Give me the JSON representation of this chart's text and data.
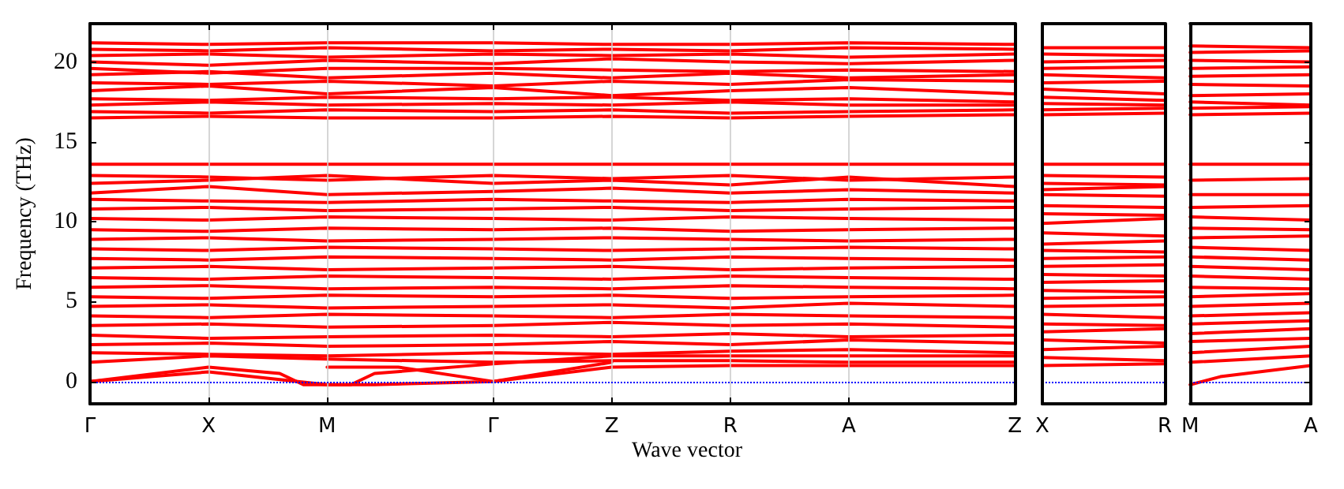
{
  "chart_data": [
    {
      "type": "line",
      "ylabel": "Frequency (THz)",
      "xlabel": "Wave vector",
      "color": "#ff0000",
      "grid": "x",
      "marker": "none",
      "categories": [
        "Γ",
        null,
        null,
        null,
        null,
        "X",
        null,
        null,
        null,
        null,
        "M",
        null,
        null,
        null,
        null,
        null,
        null,
        "Γ",
        null,
        null,
        null,
        null,
        "Z",
        null,
        null,
        null,
        null,
        "R",
        null,
        null,
        null,
        null,
        "A",
        null,
        null,
        null,
        null,
        null,
        null,
        "Z"
      ],
      "ylim": [
        -1.4,
        22.4
      ],
      "yticks": [
        0,
        5,
        10,
        15,
        20
      ],
      "ref_lines": [
        {
          "axis": "y",
          "value": 0,
          "color": "#0000ff",
          "line_style": "dotted"
        }
      ],
      "series": [
        {
          "values": [
            0,
            null,
            null,
            null,
            null,
            0.9,
            null,
            null,
            0.5,
            -0.2,
            -0.2,
            null,
            -0.2,
            null,
            null,
            null,
            null,
            0,
            null,
            null,
            null,
            null,
            0.9,
            null,
            null,
            null,
            null,
            1.0,
            null,
            null,
            null,
            null,
            1.0,
            null,
            null,
            null,
            null,
            null,
            null,
            1.0
          ]
        },
        {
          "values": [
            0,
            null,
            null,
            null,
            null,
            0.6,
            null,
            null,
            null,
            null,
            -0.2,
            -0.2,
            0.5,
            null,
            null,
            null,
            null,
            1.1,
            null,
            null,
            null,
            null,
            1.6,
            null,
            null,
            null,
            null,
            null,
            null,
            null,
            null,
            null,
            null,
            null,
            null,
            null,
            null,
            null,
            null,
            1.6
          ]
        },
        {
          "values": [
            null,
            null,
            null,
            null,
            null,
            null,
            null,
            null,
            null,
            null,
            0.9,
            null,
            null,
            0.9,
            null,
            null,
            null,
            0,
            null,
            null,
            null,
            null,
            1.2,
            null,
            null,
            null,
            null,
            null,
            null,
            null,
            null,
            null,
            null,
            null,
            null,
            null,
            null,
            null,
            null,
            null
          ]
        },
        {
          "values": [
            1.2,
            null,
            null,
            null,
            null,
            1.6,
            null,
            null,
            null,
            null,
            1.4,
            null,
            null,
            null,
            null,
            null,
            null,
            1.2,
            null,
            null,
            null,
            null,
            1.3,
            null,
            null,
            null,
            null,
            1.3,
            null,
            null,
            null,
            null,
            1.2,
            null,
            null,
            null,
            null,
            null,
            null,
            1.2
          ]
        },
        {
          "values": [
            1.8,
            null,
            null,
            null,
            null,
            1.7,
            null,
            null,
            null,
            null,
            1.6,
            null,
            null,
            null,
            null,
            null,
            null,
            1.8,
            null,
            null,
            null,
            null,
            1.7,
            null,
            null,
            null,
            null,
            1.9,
            null,
            null,
            null,
            null,
            2.0,
            null,
            null,
            null,
            null,
            null,
            null,
            1.8
          ]
        },
        {
          "values": [
            2.3,
            null,
            null,
            null,
            null,
            2.4,
            null,
            null,
            null,
            null,
            2.2,
            null,
            null,
            null,
            null,
            null,
            null,
            2.3,
            null,
            null,
            null,
            null,
            2.5,
            null,
            null,
            null,
            null,
            2.3,
            null,
            null,
            null,
            null,
            2.6,
            null,
            null,
            null,
            null,
            null,
            null,
            2.4
          ]
        },
        {
          "values": [
            2.9,
            null,
            null,
            null,
            null,
            2.7,
            null,
            null,
            null,
            null,
            2.8,
            null,
            null,
            null,
            null,
            null,
            null,
            2.9,
            null,
            null,
            null,
            null,
            2.8,
            null,
            null,
            null,
            null,
            3.0,
            null,
            null,
            null,
            null,
            2.8,
            null,
            null,
            null,
            null,
            null,
            null,
            2.9
          ]
        },
        {
          "values": [
            3.5,
            null,
            null,
            null,
            null,
            3.6,
            null,
            null,
            null,
            null,
            3.4,
            null,
            null,
            null,
            null,
            null,
            null,
            3.5,
            null,
            null,
            null,
            null,
            3.7,
            null,
            null,
            null,
            null,
            3.5,
            null,
            null,
            null,
            null,
            3.6,
            null,
            null,
            null,
            null,
            null,
            null,
            3.4
          ]
        },
        {
          "values": [
            4.1,
            null,
            null,
            null,
            null,
            4.0,
            null,
            null,
            null,
            null,
            4.2,
            null,
            null,
            null,
            null,
            null,
            null,
            4.1,
            null,
            null,
            null,
            null,
            4.0,
            null,
            null,
            null,
            null,
            4.2,
            null,
            null,
            null,
            null,
            4.1,
            null,
            null,
            null,
            null,
            null,
            null,
            4.0
          ]
        },
        {
          "values": [
            4.7,
            null,
            null,
            null,
            null,
            4.8,
            null,
            null,
            null,
            null,
            4.6,
            null,
            null,
            null,
            null,
            null,
            null,
            4.7,
            null,
            null,
            null,
            null,
            4.8,
            null,
            null,
            null,
            null,
            4.6,
            null,
            null,
            null,
            null,
            4.9,
            null,
            null,
            null,
            null,
            null,
            null,
            4.7
          ]
        },
        {
          "values": [
            5.3,
            null,
            null,
            null,
            null,
            5.2,
            null,
            null,
            null,
            null,
            5.4,
            null,
            null,
            null,
            null,
            null,
            null,
            5.3,
            null,
            null,
            null,
            null,
            5.4,
            null,
            null,
            null,
            null,
            5.2,
            null,
            null,
            null,
            null,
            5.3,
            null,
            null,
            null,
            null,
            null,
            null,
            5.4
          ]
        },
        {
          "values": [
            5.9,
            null,
            null,
            null,
            null,
            6.0,
            null,
            null,
            null,
            null,
            5.8,
            null,
            null,
            null,
            null,
            null,
            null,
            5.9,
            null,
            null,
            null,
            null,
            5.8,
            null,
            null,
            null,
            null,
            6.0,
            null,
            null,
            null,
            null,
            5.9,
            null,
            null,
            null,
            null,
            null,
            null,
            5.8
          ]
        },
        {
          "values": [
            6.5,
            null,
            null,
            null,
            null,
            6.4,
            null,
            null,
            null,
            null,
            6.6,
            null,
            null,
            null,
            null,
            null,
            null,
            6.5,
            null,
            null,
            null,
            null,
            6.4,
            null,
            null,
            null,
            null,
            6.6,
            null,
            null,
            null,
            null,
            6.5,
            null,
            null,
            null,
            null,
            null,
            null,
            6.4
          ]
        },
        {
          "values": [
            7.1,
            null,
            null,
            null,
            null,
            7.2,
            null,
            null,
            null,
            null,
            7.0,
            null,
            null,
            null,
            null,
            null,
            null,
            7.1,
            null,
            null,
            null,
            null,
            7.2,
            null,
            null,
            null,
            null,
            7.0,
            null,
            null,
            null,
            null,
            7.1,
            null,
            null,
            null,
            null,
            null,
            null,
            7.2
          ]
        },
        {
          "values": [
            7.7,
            null,
            null,
            null,
            null,
            7.6,
            null,
            null,
            null,
            null,
            7.8,
            null,
            null,
            null,
            null,
            null,
            null,
            7.7,
            null,
            null,
            null,
            null,
            7.6,
            null,
            null,
            null,
            null,
            7.8,
            null,
            null,
            null,
            null,
            7.7,
            null,
            null,
            null,
            null,
            null,
            null,
            7.6
          ]
        },
        {
          "values": [
            8.3,
            null,
            null,
            null,
            null,
            8.2,
            null,
            null,
            null,
            null,
            8.4,
            null,
            null,
            null,
            null,
            null,
            null,
            8.3,
            null,
            null,
            null,
            null,
            8.2,
            null,
            null,
            null,
            null,
            8.3,
            null,
            null,
            null,
            null,
            8.4,
            null,
            null,
            null,
            null,
            null,
            null,
            8.3
          ]
        },
        {
          "values": [
            8.9,
            null,
            null,
            null,
            null,
            9.0,
            null,
            null,
            null,
            null,
            8.8,
            null,
            null,
            null,
            null,
            null,
            null,
            8.9,
            null,
            null,
            null,
            null,
            9.0,
            null,
            null,
            null,
            null,
            8.9,
            null,
            null,
            null,
            null,
            8.8,
            null,
            null,
            null,
            null,
            null,
            null,
            8.9
          ]
        },
        {
          "values": [
            9.5,
            null,
            null,
            null,
            null,
            9.4,
            null,
            null,
            null,
            null,
            9.6,
            null,
            null,
            null,
            null,
            null,
            null,
            9.5,
            null,
            null,
            null,
            null,
            9.6,
            null,
            null,
            null,
            null,
            9.4,
            null,
            null,
            null,
            null,
            9.5,
            null,
            null,
            null,
            null,
            null,
            null,
            9.6
          ]
        },
        {
          "values": [
            10.2,
            null,
            null,
            null,
            null,
            10.1,
            null,
            null,
            null,
            null,
            10.3,
            null,
            null,
            null,
            null,
            null,
            null,
            10.2,
            null,
            null,
            null,
            null,
            10.1,
            null,
            null,
            null,
            null,
            10.3,
            null,
            null,
            null,
            null,
            10.2,
            null,
            null,
            null,
            null,
            null,
            null,
            10.1
          ]
        },
        {
          "values": [
            10.8,
            null,
            null,
            null,
            null,
            10.9,
            null,
            null,
            null,
            null,
            10.7,
            null,
            null,
            null,
            null,
            null,
            null,
            10.8,
            null,
            null,
            null,
            null,
            10.9,
            null,
            null,
            null,
            null,
            10.7,
            null,
            null,
            null,
            null,
            10.8,
            null,
            null,
            null,
            null,
            null,
            null,
            10.9
          ]
        },
        {
          "values": [
            11.4,
            null,
            null,
            null,
            null,
            11.3,
            null,
            null,
            null,
            null,
            11.2,
            null,
            null,
            null,
            null,
            null,
            null,
            11.4,
            null,
            null,
            null,
            null,
            11.3,
            null,
            null,
            null,
            null,
            11.2,
            null,
            null,
            null,
            null,
            11.4,
            null,
            null,
            null,
            null,
            null,
            null,
            11.3
          ]
        },
        {
          "values": [
            11.8,
            null,
            null,
            null,
            null,
            12.2,
            null,
            null,
            null,
            null,
            11.7,
            null,
            null,
            null,
            null,
            null,
            null,
            11.9,
            null,
            null,
            null,
            null,
            12.1,
            null,
            null,
            null,
            null,
            11.8,
            null,
            null,
            null,
            null,
            12.0,
            null,
            null,
            null,
            null,
            null,
            null,
            11.8
          ]
        },
        {
          "values": [
            12.4,
            null,
            null,
            null,
            null,
            12.6,
            null,
            null,
            null,
            null,
            12.9,
            null,
            null,
            null,
            null,
            null,
            null,
            12.4,
            null,
            null,
            null,
            null,
            12.6,
            null,
            null,
            null,
            null,
            12.3,
            null,
            null,
            null,
            null,
            12.8,
            null,
            null,
            null,
            null,
            null,
            null,
            12.2
          ]
        },
        {
          "values": [
            12.9,
            null,
            null,
            null,
            null,
            12.8,
            null,
            null,
            null,
            null,
            12.6,
            null,
            null,
            null,
            null,
            null,
            null,
            12.9,
            null,
            null,
            null,
            null,
            12.7,
            null,
            null,
            null,
            null,
            12.9,
            null,
            null,
            null,
            null,
            12.6,
            null,
            null,
            null,
            null,
            null,
            null,
            12.8
          ]
        },
        {
          "values": [
            13.6,
            null,
            null,
            null,
            null,
            13.6,
            null,
            null,
            null,
            null,
            13.6,
            null,
            null,
            null,
            null,
            null,
            null,
            13.6,
            null,
            null,
            null,
            null,
            13.6,
            null,
            null,
            null,
            null,
            13.6,
            null,
            null,
            null,
            null,
            13.6,
            null,
            null,
            null,
            null,
            null,
            null,
            13.6
          ]
        },
        {
          "values": [
            16.5,
            null,
            null,
            null,
            null,
            16.6,
            null,
            null,
            null,
            null,
            16.5,
            null,
            null,
            null,
            null,
            null,
            null,
            16.5,
            null,
            null,
            null,
            null,
            16.6,
            null,
            null,
            null,
            null,
            16.5,
            null,
            null,
            null,
            null,
            16.6,
            null,
            null,
            null,
            null,
            null,
            null,
            16.7
          ]
        },
        {
          "values": [
            16.9,
            null,
            null,
            null,
            null,
            16.8,
            null,
            null,
            null,
            null,
            17.0,
            null,
            null,
            null,
            null,
            null,
            null,
            16.9,
            null,
            null,
            null,
            null,
            17.0,
            null,
            null,
            null,
            null,
            16.8,
            null,
            null,
            null,
            null,
            16.9,
            null,
            null,
            null,
            null,
            null,
            null,
            17.0
          ]
        },
        {
          "values": [
            17.3,
            null,
            null,
            null,
            null,
            17.5,
            null,
            null,
            null,
            null,
            17.3,
            null,
            null,
            null,
            null,
            null,
            null,
            17.4,
            null,
            null,
            null,
            null,
            17.3,
            null,
            null,
            null,
            null,
            17.5,
            null,
            null,
            null,
            null,
            17.3,
            null,
            null,
            null,
            null,
            null,
            null,
            17.3
          ]
        },
        {
          "values": [
            17.7,
            null,
            null,
            null,
            null,
            17.6,
            null,
            null,
            null,
            null,
            17.8,
            null,
            null,
            null,
            null,
            null,
            null,
            17.7,
            null,
            null,
            null,
            null,
            17.8,
            null,
            null,
            null,
            null,
            17.6,
            null,
            null,
            null,
            null,
            17.7,
            null,
            null,
            null,
            null,
            null,
            null,
            17.5
          ]
        },
        {
          "values": [
            18.2,
            null,
            null,
            null,
            null,
            18.5,
            null,
            null,
            null,
            null,
            18.0,
            null,
            null,
            null,
            null,
            null,
            null,
            18.4,
            null,
            null,
            null,
            null,
            17.9,
            null,
            null,
            null,
            null,
            18.2,
            null,
            null,
            null,
            null,
            18.4,
            null,
            null,
            null,
            null,
            null,
            null,
            18.0
          ]
        },
        {
          "values": [
            18.7,
            null,
            null,
            null,
            null,
            18.6,
            null,
            null,
            null,
            null,
            18.8,
            null,
            null,
            null,
            null,
            null,
            null,
            18.5,
            null,
            null,
            null,
            null,
            18.8,
            null,
            null,
            null,
            null,
            18.6,
            null,
            null,
            null,
            null,
            18.9,
            null,
            null,
            null,
            null,
            null,
            null,
            18.8
          ]
        },
        {
          "values": [
            19.2,
            null,
            null,
            null,
            null,
            19.4,
            null,
            null,
            null,
            null,
            19.0,
            null,
            null,
            null,
            null,
            null,
            null,
            19.3,
            null,
            null,
            null,
            null,
            19.0,
            null,
            null,
            null,
            null,
            19.3,
            null,
            null,
            null,
            null,
            19.0,
            null,
            null,
            null,
            null,
            null,
            null,
            19.2
          ]
        },
        {
          "values": [
            19.6,
            null,
            null,
            null,
            null,
            19.3,
            null,
            null,
            null,
            null,
            19.6,
            null,
            null,
            null,
            null,
            null,
            null,
            19.6,
            null,
            null,
            null,
            null,
            19.5,
            null,
            null,
            null,
            null,
            19.4,
            null,
            null,
            null,
            null,
            19.5,
            null,
            null,
            null,
            null,
            null,
            null,
            19.4
          ]
        },
        {
          "values": [
            20.0,
            null,
            null,
            null,
            null,
            19.8,
            null,
            null,
            null,
            null,
            20.1,
            null,
            null,
            null,
            null,
            null,
            null,
            19.9,
            null,
            null,
            null,
            null,
            20.2,
            null,
            null,
            null,
            null,
            20.0,
            null,
            null,
            null,
            null,
            19.9,
            null,
            null,
            null,
            null,
            null,
            null,
            20.1
          ]
        },
        {
          "values": [
            20.4,
            null,
            null,
            null,
            null,
            20.5,
            null,
            null,
            null,
            null,
            20.3,
            null,
            null,
            null,
            null,
            null,
            null,
            20.5,
            null,
            null,
            null,
            null,
            20.4,
            null,
            null,
            null,
            null,
            20.5,
            null,
            null,
            null,
            null,
            20.3,
            null,
            null,
            null,
            null,
            null,
            null,
            20.5
          ]
        },
        {
          "values": [
            20.8,
            null,
            null,
            null,
            null,
            20.7,
            null,
            null,
            null,
            null,
            20.9,
            null,
            null,
            null,
            null,
            null,
            null,
            20.7,
            null,
            null,
            null,
            null,
            20.8,
            null,
            null,
            null,
            null,
            20.7,
            null,
            null,
            null,
            null,
            20.9,
            null,
            null,
            null,
            null,
            null,
            null,
            20.8
          ]
        },
        {
          "values": [
            21.2,
            null,
            null,
            null,
            null,
            21.1,
            null,
            null,
            null,
            null,
            21.2,
            null,
            null,
            null,
            null,
            null,
            null,
            21.2,
            null,
            null,
            null,
            null,
            21.1,
            null,
            null,
            null,
            null,
            21.1,
            null,
            null,
            null,
            null,
            21.2,
            null,
            null,
            null,
            null,
            null,
            null,
            21.1
          ]
        }
      ]
    },
    {
      "type": "line",
      "color": "#ff0000",
      "marker": "none",
      "tick_labels": "x",
      "categories": [
        "X",
        "R"
      ],
      "ylim": [
        -1.4,
        22.4
      ],
      "ref_lines": [
        {
          "axis": "y",
          "value": 0,
          "color": "#0000ff",
          "line_style": "dotted"
        }
      ],
      "series": [
        {
          "values": [
            1.0,
            1.1
          ]
        },
        {
          "values": [
            1.5,
            1.3
          ]
        },
        {
          "values": [
            2.0,
            2.2
          ]
        },
        {
          "values": [
            2.6,
            2.4
          ]
        },
        {
          "values": [
            3.1,
            3.3
          ]
        },
        {
          "values": [
            3.6,
            3.5
          ]
        },
        {
          "values": [
            4.2,
            4.0
          ]
        },
        {
          "values": [
            4.7,
            4.8
          ]
        },
        {
          "values": [
            5.2,
            5.3
          ]
        },
        {
          "values": [
            5.7,
            5.6
          ]
        },
        {
          "values": [
            6.2,
            6.3
          ]
        },
        {
          "values": [
            6.7,
            6.6
          ]
        },
        {
          "values": [
            7.2,
            7.3
          ]
        },
        {
          "values": [
            7.7,
            7.8
          ]
        },
        {
          "values": [
            8.2,
            8.1
          ]
        },
        {
          "values": [
            8.6,
            8.8
          ]
        },
        {
          "values": [
            9.3,
            9.1
          ]
        },
        {
          "values": [
            9.9,
            10.2
          ]
        },
        {
          "values": [
            10.5,
            10.4
          ]
        },
        {
          "values": [
            11.0,
            10.9
          ]
        },
        {
          "values": [
            11.7,
            11.6
          ]
        },
        {
          "values": [
            12.0,
            12.2
          ]
        },
        {
          "values": [
            12.4,
            12.3
          ]
        },
        {
          "values": [
            12.9,
            12.8
          ]
        },
        {
          "values": [
            13.6,
            13.6
          ]
        },
        {
          "values": [
            16.7,
            16.8
          ]
        },
        {
          "values": [
            17.0,
            17.1
          ]
        },
        {
          "values": [
            17.4,
            17.3
          ]
        },
        {
          "values": [
            17.8,
            17.6
          ]
        },
        {
          "values": [
            18.3,
            18.0
          ]
        },
        {
          "values": [
            18.7,
            18.8
          ]
        },
        {
          "values": [
            19.2,
            19.0
          ]
        },
        {
          "values": [
            19.6,
            19.7
          ]
        },
        {
          "values": [
            20.0,
            20.1
          ]
        },
        {
          "values": [
            20.5,
            20.4
          ]
        },
        {
          "values": [
            20.9,
            20.9
          ]
        }
      ]
    },
    {
      "type": "line",
      "color": "#ff0000",
      "marker": "none",
      "tick_labels": "x",
      "categories": [
        "M",
        null,
        null,
        null,
        "A"
      ],
      "ylim": [
        -1.4,
        22.4
      ],
      "yticks": [
        0,
        5,
        10,
        15,
        20
      ],
      "ref_lines": [
        {
          "axis": "y",
          "value": 0,
          "color": "#0000ff",
          "line_style": "dotted"
        }
      ],
      "series": [
        {
          "values": [
            -0.2,
            0.3,
            null,
            null,
            1.0
          ]
        },
        {
          "values": [
            1.2,
            null,
            null,
            null,
            1.6
          ]
        },
        {
          "values": [
            1.8,
            null,
            null,
            null,
            2.2
          ]
        },
        {
          "values": [
            2.5,
            null,
            null,
            null,
            2.7
          ]
        },
        {
          "values": [
            3.0,
            null,
            null,
            null,
            3.3
          ]
        },
        {
          "values": [
            3.6,
            null,
            null,
            null,
            3.8
          ]
        },
        {
          "values": [
            4.1,
            null,
            null,
            null,
            4.3
          ]
        },
        {
          "values": [
            4.7,
            null,
            null,
            null,
            4.9
          ]
        },
        {
          "values": [
            5.3,
            null,
            null,
            null,
            5.5
          ]
        },
        {
          "values": [
            5.9,
            null,
            null,
            null,
            5.8
          ]
        },
        {
          "values": [
            6.6,
            null,
            null,
            null,
            6.4
          ]
        },
        {
          "values": [
            7.2,
            null,
            null,
            null,
            7.0
          ]
        },
        {
          "values": [
            7.8,
            null,
            null,
            null,
            7.6
          ]
        },
        {
          "values": [
            8.4,
            null,
            null,
            null,
            8.2
          ]
        },
        {
          "values": [
            9.0,
            null,
            null,
            null,
            9.1
          ]
        },
        {
          "values": [
            9.6,
            null,
            null,
            null,
            9.5
          ]
        },
        {
          "values": [
            10.3,
            null,
            null,
            null,
            10.1
          ]
        },
        {
          "values": [
            10.9,
            null,
            null,
            null,
            11.0
          ]
        },
        {
          "values": [
            11.7,
            null,
            null,
            null,
            11.7
          ]
        },
        {
          "values": [
            12.6,
            null,
            null,
            null,
            12.7
          ]
        },
        {
          "values": [
            13.6,
            null,
            null,
            null,
            13.6
          ]
        },
        {
          "values": [
            16.7,
            null,
            null,
            null,
            16.8
          ]
        },
        {
          "values": [
            17.1,
            null,
            null,
            null,
            17.2
          ]
        },
        {
          "values": [
            17.5,
            null,
            null,
            null,
            17.3
          ]
        },
        {
          "values": [
            17.9,
            null,
            null,
            null,
            18.0
          ]
        },
        {
          "values": [
            18.6,
            null,
            null,
            null,
            18.5
          ]
        },
        {
          "values": [
            19.1,
            null,
            null,
            null,
            19.2
          ]
        },
        {
          "values": [
            19.6,
            null,
            null,
            null,
            19.7
          ]
        },
        {
          "values": [
            20.1,
            null,
            null,
            null,
            20.0
          ]
        },
        {
          "values": [
            20.6,
            null,
            null,
            null,
            20.7
          ]
        },
        {
          "values": [
            21.0,
            null,
            null,
            null,
            20.9
          ]
        }
      ]
    }
  ]
}
